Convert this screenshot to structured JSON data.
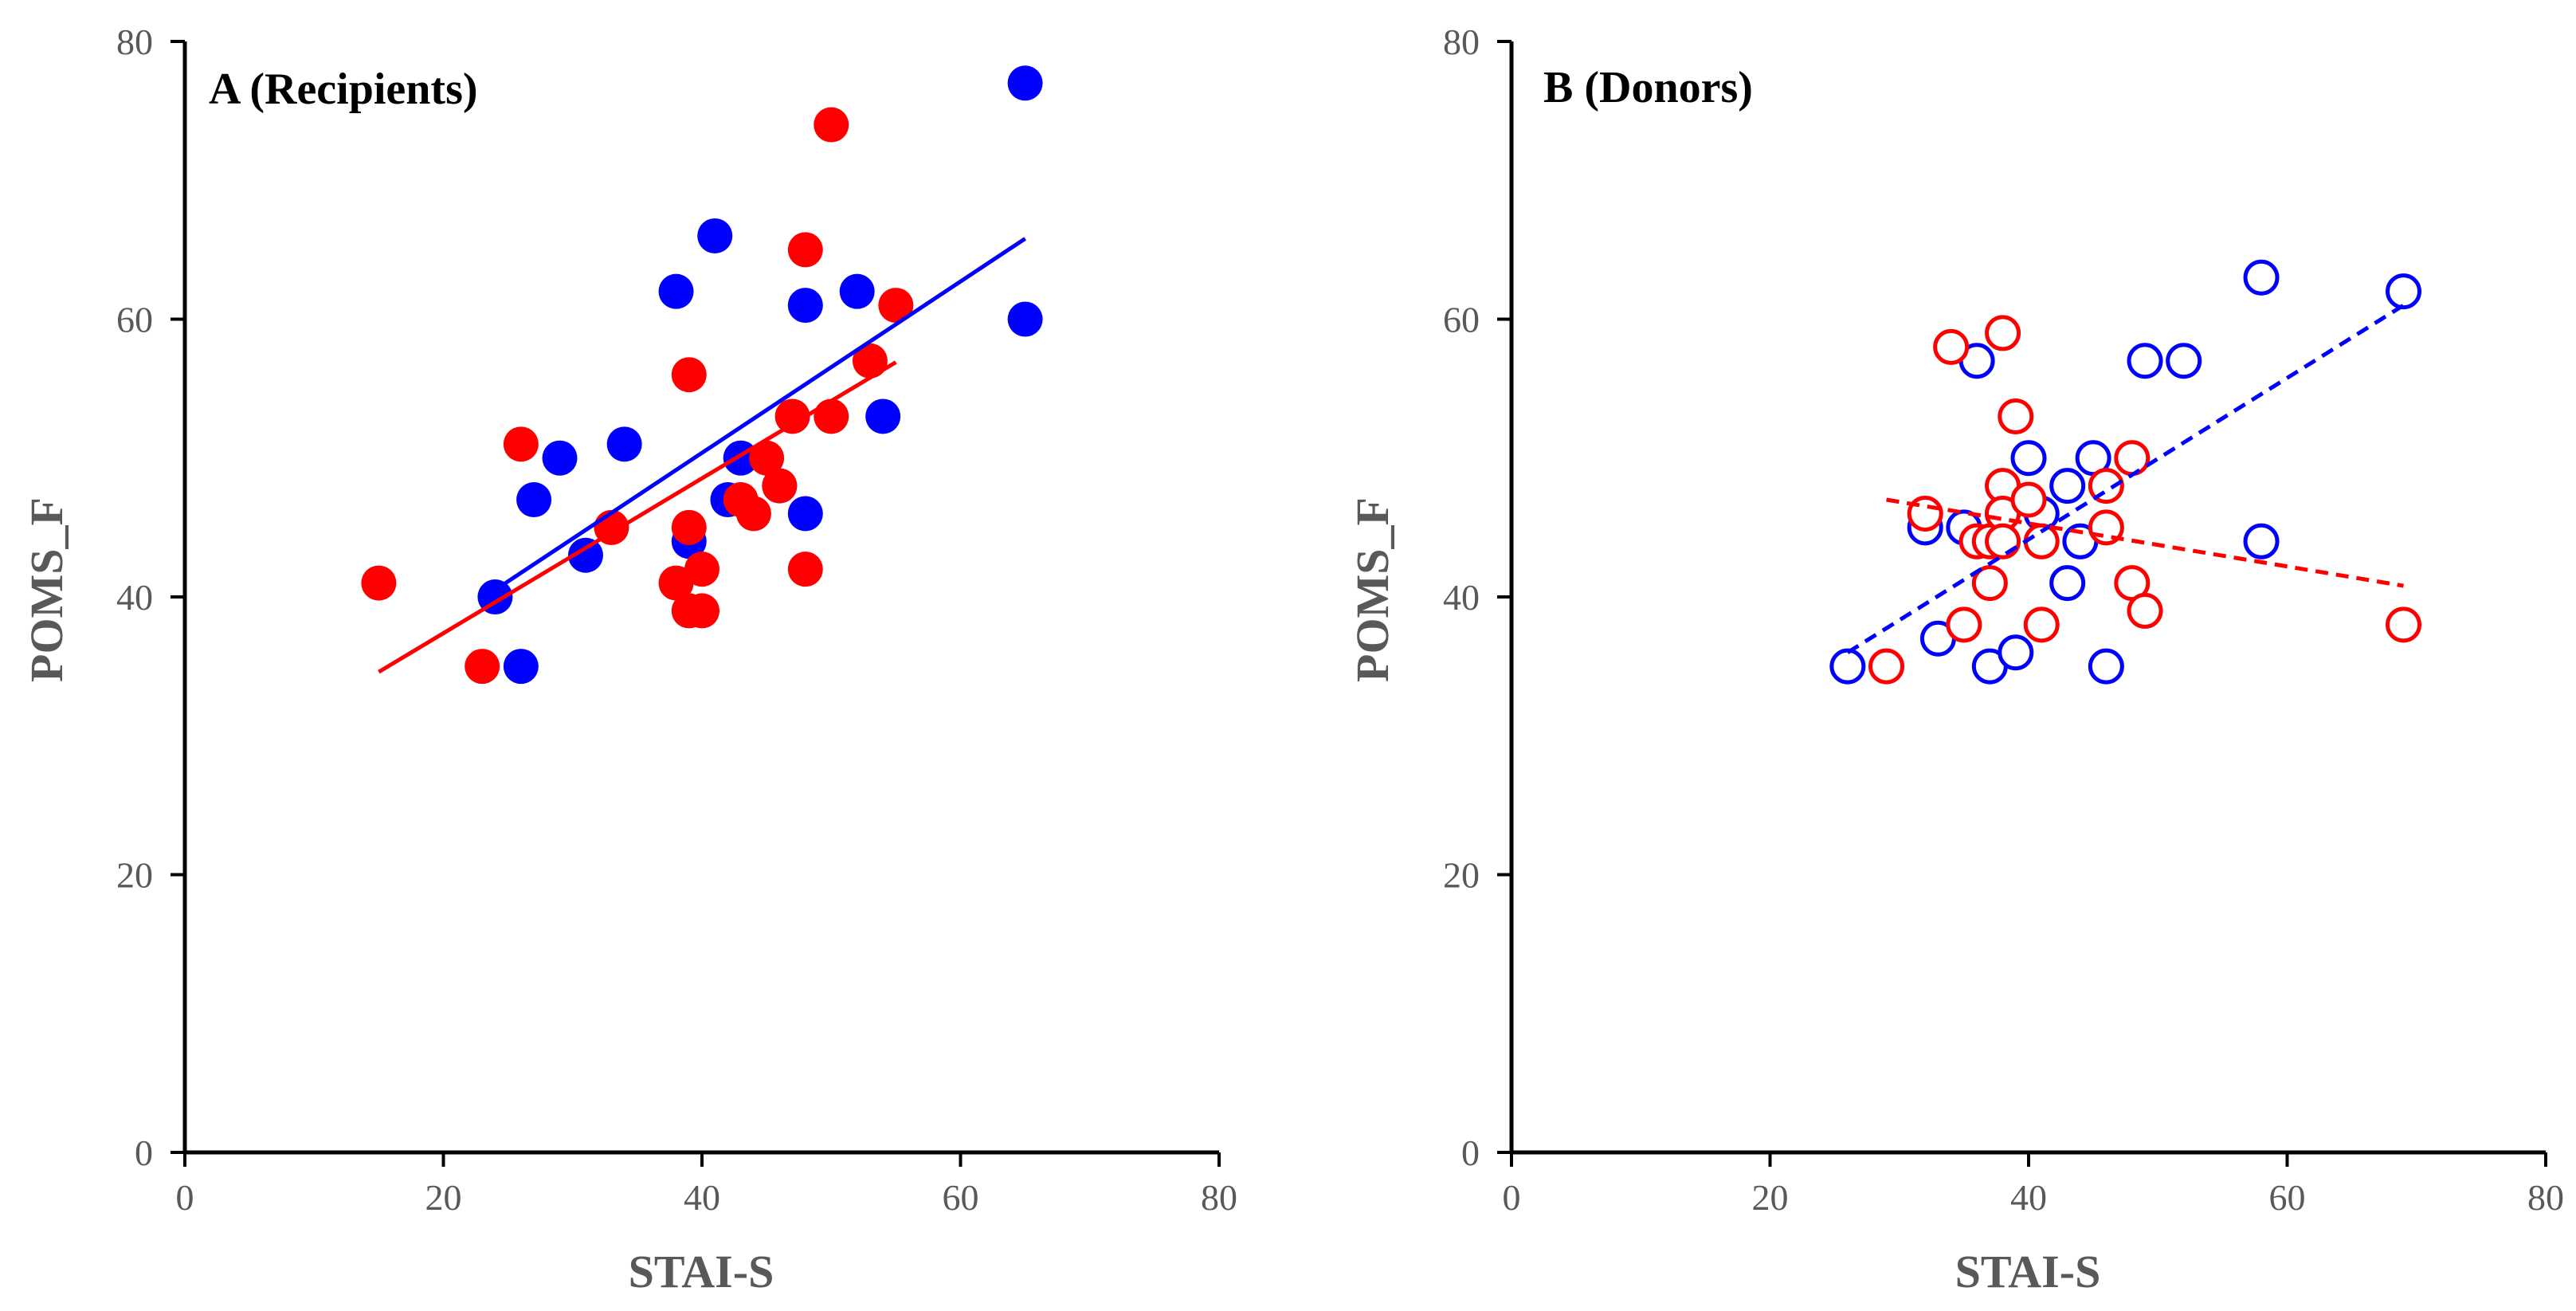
{
  "colors": {
    "blue": "#0000ff",
    "red": "#ff0000",
    "axis": "#000000",
    "tick_text": "#595959"
  },
  "chart_data": [
    {
      "type": "scatter",
      "title": "A (Recipients)",
      "xlabel": "STAI-S",
      "ylabel": "POMS_F",
      "xlim": [
        0,
        80
      ],
      "ylim": [
        0,
        80
      ],
      "xticks": [
        "0",
        "20",
        "40",
        "60",
        "80"
      ],
      "yticks": [
        "0",
        "20",
        "40",
        "60",
        "80"
      ],
      "marker": "filled",
      "series": [
        {
          "name": "blue",
          "color": "#0000ff",
          "x": [
            24,
            26,
            27,
            29,
            31,
            34,
            38,
            39,
            41,
            42,
            43,
            46,
            48,
            48,
            52,
            54,
            65,
            65
          ],
          "y": [
            40,
            35,
            47,
            50,
            43,
            51,
            62,
            44,
            66,
            47,
            50,
            48,
            61,
            46,
            62,
            53,
            77,
            60
          ],
          "trendline": {
            "x": [
              24,
              65
            ],
            "y": [
              40.5,
              65.8
            ],
            "style": "solid"
          }
        },
        {
          "name": "red",
          "color": "#ff0000",
          "x": [
            15,
            23,
            26,
            33,
            38,
            39,
            39,
            39,
            40,
            40,
            43,
            44,
            45,
            46,
            47,
            48,
            48,
            50,
            50,
            53,
            55
          ],
          "y": [
            41,
            35,
            51,
            45,
            41,
            56,
            45,
            39,
            39,
            42,
            47,
            46,
            50,
            48,
            53,
            65,
            42,
            74,
            53,
            57,
            61
          ],
          "trendline": {
            "x": [
              15,
              55
            ],
            "y": [
              34.6,
              56.9
            ],
            "style": "solid"
          }
        }
      ]
    },
    {
      "type": "scatter",
      "title": "B (Donors)",
      "xlabel": "STAI-S",
      "ylabel": "POMS_F",
      "xlim": [
        0,
        80
      ],
      "ylim": [
        0,
        80
      ],
      "xticks": [
        "0",
        "20",
        "40",
        "60",
        "80"
      ],
      "yticks": [
        "0",
        "20",
        "40",
        "60",
        "80"
      ],
      "marker": "open",
      "series": [
        {
          "name": "blue",
          "color": "#0000ff",
          "x": [
            26,
            32,
            33,
            35,
            36,
            37,
            38,
            39,
            40,
            41,
            43,
            43,
            44,
            45,
            46,
            49,
            52,
            58,
            58,
            69
          ],
          "y": [
            35,
            45,
            37,
            45,
            57,
            35,
            46,
            36,
            50,
            46,
            48,
            41,
            44,
            50,
            35,
            57,
            57,
            63,
            44,
            62
          ],
          "trendline": {
            "x": [
              26,
              69
            ],
            "y": [
              36.0,
              61.0
            ],
            "style": "dashed"
          }
        },
        {
          "name": "red",
          "color": "#ff0000",
          "x": [
            29,
            32,
            34,
            35,
            36,
            37,
            37,
            38,
            38,
            38,
            38,
            39,
            40,
            41,
            41,
            46,
            46,
            48,
            48,
            49,
            69
          ],
          "y": [
            35,
            46,
            58,
            38,
            44,
            41,
            44,
            59,
            48,
            46,
            44,
            53,
            47,
            44,
            38,
            48,
            45,
            50,
            41,
            39,
            38
          ],
          "trendline": {
            "x": [
              29,
              69
            ],
            "y": [
              47.0,
              40.8
            ],
            "style": "dashed"
          }
        }
      ]
    }
  ]
}
